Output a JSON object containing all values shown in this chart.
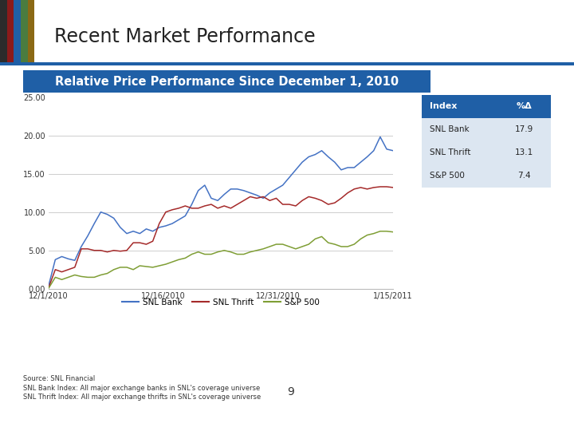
{
  "title": "Recent Market Performance",
  "subtitle": "Relative Price Performance Since December 1, 2010",
  "subtitle_bg": "#1f5fa6",
  "source_text": "Source: SNL Financial\nSNL Bank Index: All major exchange banks in SNL's coverage universe\nSNL Thrift Index: All major exchange thrifts in SNL's coverage universe",
  "page_number": "9",
  "background_color": "#ffffff",
  "chart_bg": "#ffffff",
  "ylim": [
    0,
    25
  ],
  "yticks": [
    0,
    5,
    10,
    15,
    20,
    25
  ],
  "ytick_labels": [
    "0.00",
    "5.00",
    "10.00",
    "15.00",
    "20.00",
    "25.00"
  ],
  "xtick_labels": [
    "12/1/2010",
    "12/16/2010",
    "12/31/2010",
    "1/15/2011"
  ],
  "legend_items": [
    "SNL Bank",
    "SNL Thrift",
    "S&P 500"
  ],
  "line_colors": [
    "#4472c4",
    "#a52a2a",
    "#7f9e35"
  ],
  "table_headers": [
    "Index",
    "%Δ"
  ],
  "table_data": [
    [
      "SNL Bank",
      "17.9"
    ],
    [
      "SNL Thrift",
      "13.1"
    ],
    [
      "S&P 500",
      "7.4"
    ]
  ],
  "table_header_bg": "#1f5fa6",
  "table_header_fg": "#ffffff",
  "table_row_bg": "#dce6f1",
  "stripe_colors": [
    "#2b2b2b",
    "#8b1a1a",
    "#1f5fa6",
    "#4a7c3f",
    "#8b6914"
  ],
  "hline_color": "#1f5fa6",
  "snl_bank": [
    0.5,
    3.8,
    4.2,
    3.9,
    3.7,
    5.5,
    6.9,
    8.5,
    10.0,
    9.7,
    9.2,
    8.0,
    7.2,
    7.5,
    7.2,
    7.8,
    7.5,
    8.0,
    8.2,
    8.5,
    9.0,
    9.5,
    11.0,
    12.8,
    13.5,
    11.8,
    11.5,
    12.3,
    13.0,
    13.0,
    12.8,
    12.5,
    12.2,
    11.8,
    12.5,
    13.0,
    13.5,
    14.5,
    15.5,
    16.5,
    17.2,
    17.5,
    18.0,
    17.2,
    16.5,
    15.5,
    15.8,
    15.8,
    16.5,
    17.2,
    18.0,
    19.8,
    18.2,
    18.0
  ],
  "snl_thrift": [
    0.2,
    2.5,
    2.2,
    2.5,
    2.8,
    5.2,
    5.2,
    5.0,
    5.0,
    4.8,
    5.0,
    4.9,
    5.0,
    6.0,
    6.0,
    5.8,
    6.2,
    8.5,
    10.0,
    10.3,
    10.5,
    10.8,
    10.5,
    10.5,
    10.8,
    11.0,
    10.5,
    10.8,
    10.5,
    11.0,
    11.5,
    12.0,
    11.8,
    12.0,
    11.5,
    11.8,
    11.0,
    11.0,
    10.8,
    11.5,
    12.0,
    11.8,
    11.5,
    11.0,
    11.2,
    11.8,
    12.5,
    13.0,
    13.2,
    13.0,
    13.2,
    13.3,
    13.3,
    13.2
  ],
  "sp500": [
    0.1,
    1.5,
    1.2,
    1.5,
    1.8,
    1.6,
    1.5,
    1.5,
    1.8,
    2.0,
    2.5,
    2.8,
    2.8,
    2.5,
    3.0,
    2.9,
    2.8,
    3.0,
    3.2,
    3.5,
    3.8,
    4.0,
    4.5,
    4.8,
    4.5,
    4.5,
    4.8,
    5.0,
    4.8,
    4.5,
    4.5,
    4.8,
    5.0,
    5.2,
    5.5,
    5.8,
    5.8,
    5.5,
    5.2,
    5.5,
    5.8,
    6.5,
    6.8,
    6.0,
    5.8,
    5.5,
    5.5,
    5.8,
    6.5,
    7.0,
    7.2,
    7.5,
    7.5,
    7.4
  ]
}
